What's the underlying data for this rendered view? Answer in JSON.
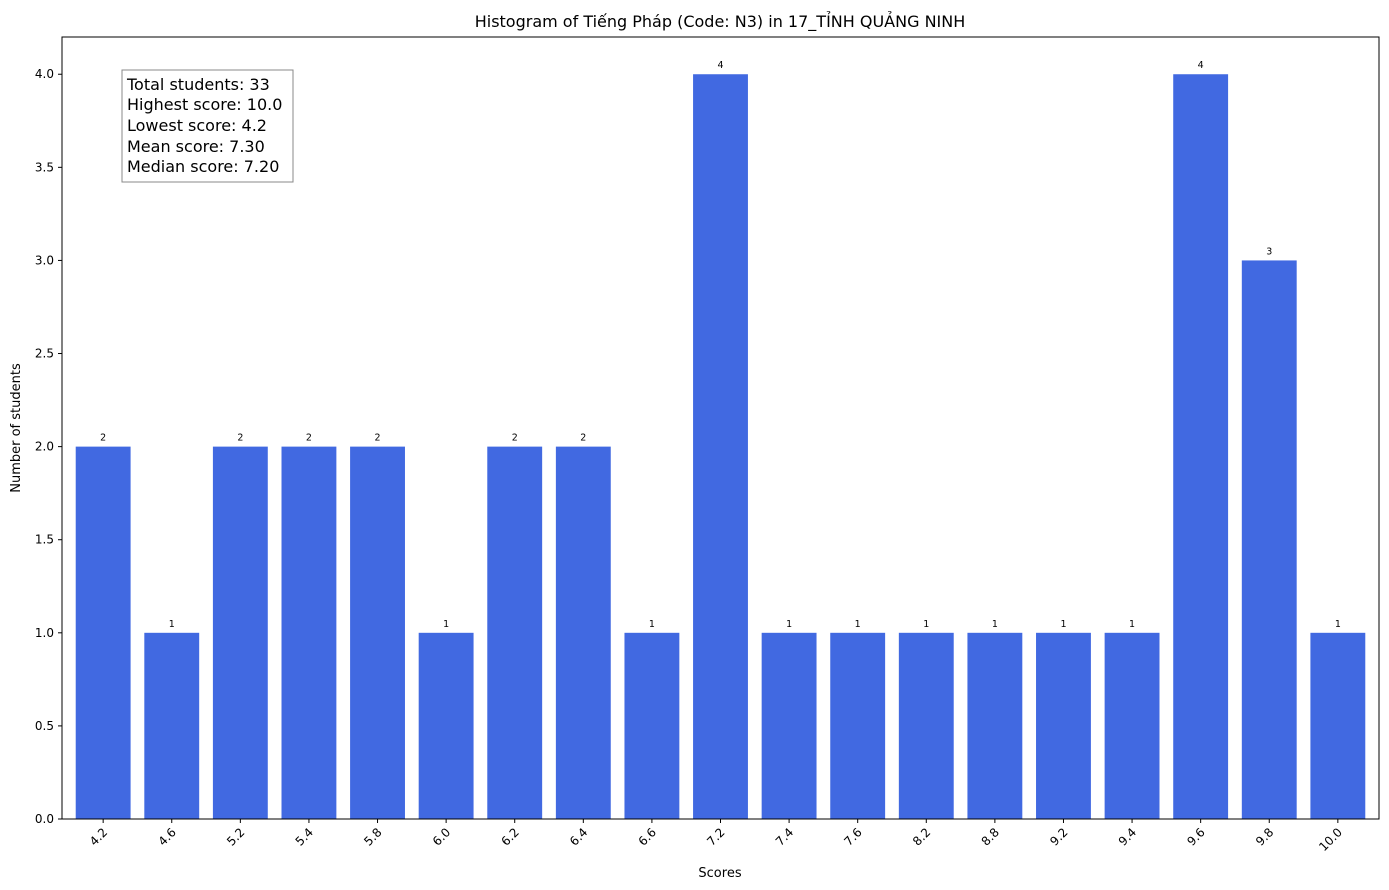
{
  "chart_data": {
    "type": "bar",
    "title": "Histogram of Tiếng Pháp (Code: N3) in 17_TỈNH QUẢNG NINH",
    "xlabel": "Scores",
    "ylabel": "Number of students",
    "categories": [
      "4.2",
      "4.6",
      "5.2",
      "5.4",
      "5.8",
      "6.0",
      "6.2",
      "6.4",
      "6.6",
      "7.2",
      "7.4",
      "7.6",
      "8.2",
      "8.8",
      "9.2",
      "9.4",
      "9.6",
      "9.8",
      "10.0"
    ],
    "values": [
      2,
      1,
      2,
      2,
      2,
      1,
      2,
      2,
      1,
      4,
      1,
      1,
      1,
      1,
      1,
      1,
      4,
      3,
      1
    ],
    "ylim": [
      0,
      4.2
    ],
    "yticks": [
      "0.0",
      "0.5",
      "1.0",
      "1.5",
      "2.0",
      "2.5",
      "3.0",
      "3.5",
      "4.0"
    ],
    "bar_color": "#4169e1",
    "grid": false,
    "stats_box": [
      "Total students: 33",
      "Highest score: 10.0",
      "Lowest score: 4.2",
      "Mean score: 7.30",
      "Median score: 7.20"
    ]
  }
}
